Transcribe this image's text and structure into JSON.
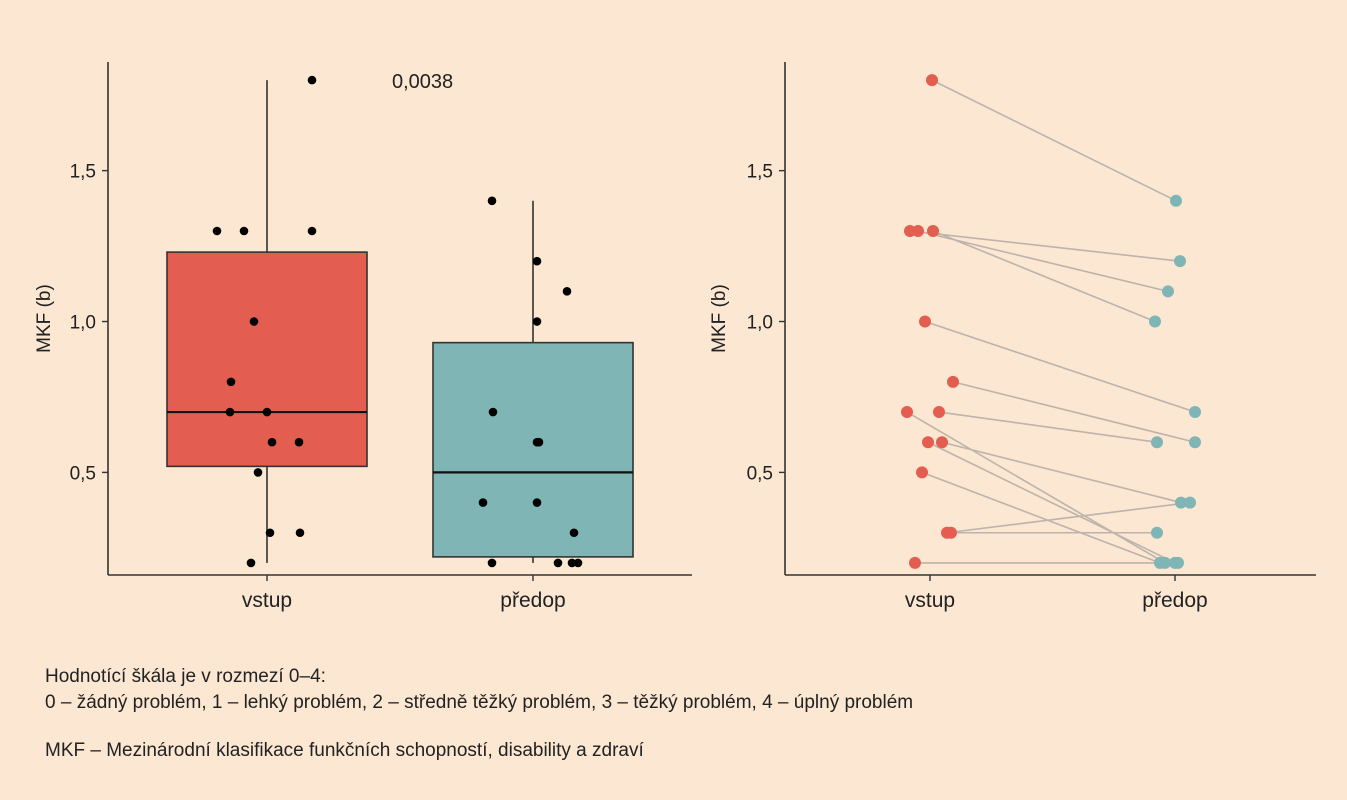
{
  "chart_data": [
    {
      "type": "boxplot",
      "ylabel": "MKF (b)",
      "categories": [
        "vstup",
        "předop"
      ],
      "ylim": [
        0.16,
        1.86
      ],
      "yticks": [
        0.5,
        1.0,
        1.5
      ],
      "ytick_labels": [
        "0,5",
        "1,0",
        "1,5"
      ],
      "annotation": "0,0038",
      "grid": false,
      "colors": {
        "vstup": "#e35d51",
        "předop": "#7fb5b5"
      },
      "boxes": [
        {
          "category": "vstup",
          "q1": 0.52,
          "median": 0.7,
          "q3": 1.23,
          "whisker_low": 0.2,
          "whisker_high": 1.8
        },
        {
          "category": "předop",
          "q1": 0.22,
          "median": 0.5,
          "q3": 0.93,
          "whisker_low": 0.2,
          "whisker_high": 1.4
        }
      ],
      "points": [
        {
          "category": "vstup",
          "values": [
            1.8,
            1.3,
            1.3,
            1.3,
            1.0,
            0.8,
            0.7,
            0.7,
            0.6,
            0.6,
            0.5,
            0.3,
            0.3,
            0.2
          ]
        },
        {
          "category": "předop",
          "values": [
            1.4,
            1.2,
            1.1,
            1.0,
            0.7,
            0.6,
            0.6,
            0.4,
            0.4,
            0.3,
            0.2,
            0.2,
            0.2,
            0.2
          ]
        }
      ]
    },
    {
      "type": "paired-line",
      "ylabel": "MKF (b)",
      "categories": [
        "vstup",
        "předop"
      ],
      "ylim": [
        0.16,
        1.86
      ],
      "yticks": [
        0.5,
        1.0,
        1.5
      ],
      "ytick_labels": [
        "0,5",
        "1,0",
        "1,5"
      ],
      "grid": false,
      "colors": {
        "vstup": "#e35d51",
        "předop": "#7fb5b5",
        "line": "#bdb3aa"
      },
      "pairs": [
        {
          "vstup": 1.8,
          "předop": 1.4
        },
        {
          "vstup": 1.3,
          "předop": 1.2
        },
        {
          "vstup": 1.3,
          "předop": 1.1
        },
        {
          "vstup": 1.3,
          "předop": 1.0
        },
        {
          "vstup": 1.0,
          "předop": 0.7
        },
        {
          "vstup": 0.8,
          "předop": 0.6
        },
        {
          "vstup": 0.7,
          "předop": 0.6
        },
        {
          "vstup": 0.7,
          "předop": 0.2
        },
        {
          "vstup": 0.6,
          "předop": 0.4
        },
        {
          "vstup": 0.6,
          "předop": 0.2
        },
        {
          "vstup": 0.5,
          "předop": 0.2
        },
        {
          "vstup": 0.3,
          "předop": 0.4
        },
        {
          "vstup": 0.3,
          "předop": 0.3
        },
        {
          "vstup": 0.2,
          "předop": 0.2
        }
      ]
    }
  ],
  "notes": {
    "scale_title": "Hodnotící škála je v rozmezí 0–4:",
    "scale_values": "0 – žádný problém, 1 – lehký problém, 2 – středně těžký problém, 3 – těžký problém, 4 – úplný problém",
    "abbreviation": "MKF – Mezinárodní klasifikace funkčních schopností, disability a zdraví"
  }
}
